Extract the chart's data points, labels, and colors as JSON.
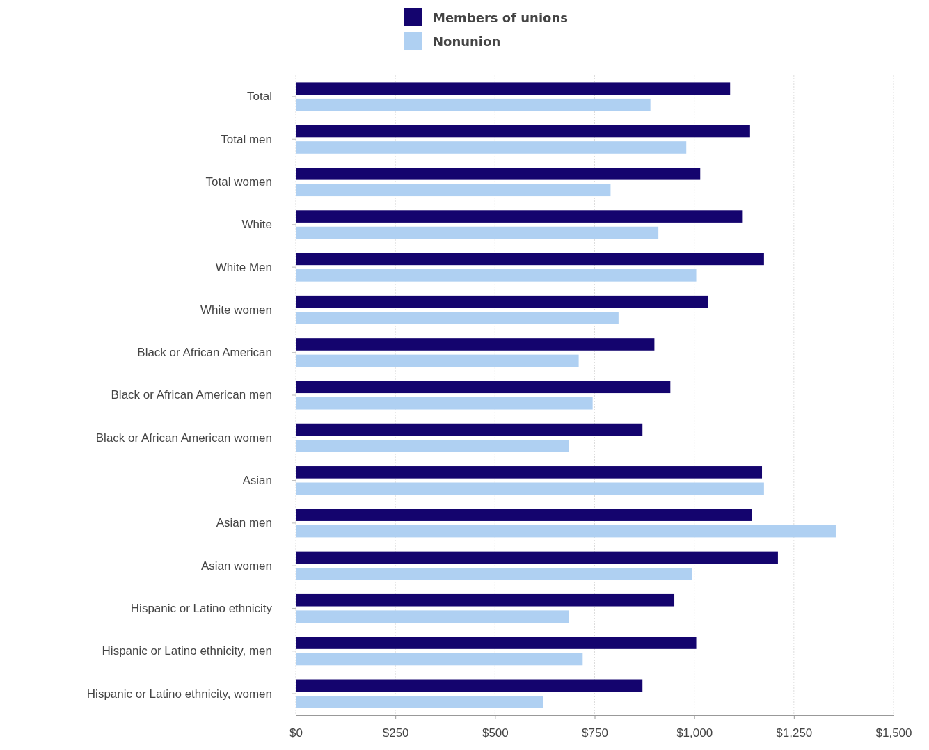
{
  "chart_data": {
    "type": "bar",
    "orientation": "horizontal",
    "categories": [
      "Total",
      "Total men",
      "Total women",
      "White",
      "White Men",
      "White women",
      "Black or African American",
      "Black or African American men",
      "Black or African American women",
      "Asian",
      "Asian men",
      "Asian women",
      "Hispanic or Latino ethnicity",
      "Hispanic or Latino ethnicity, men",
      "Hispanic or Latino ethnicity, women"
    ],
    "series": [
      {
        "name": "Members of unions",
        "color": "#14046e",
        "values": [
          1090,
          1140,
          1015,
          1120,
          1175,
          1035,
          900,
          940,
          870,
          1170,
          1145,
          1210,
          950,
          1005,
          870
        ]
      },
      {
        "name": "Nonunion",
        "color": "#afd0f2",
        "values": [
          890,
          980,
          790,
          910,
          1005,
          810,
          710,
          745,
          685,
          1175,
          1355,
          995,
          685,
          720,
          620
        ]
      }
    ],
    "xlim": [
      0,
      1500
    ],
    "xticks": [
      {
        "value": 0,
        "label": "$0"
      },
      {
        "value": 250,
        "label": "$250"
      },
      {
        "value": 500,
        "label": "$500"
      },
      {
        "value": 750,
        "label": "$750"
      },
      {
        "value": 1000,
        "label": "$1,000"
      },
      {
        "value": 1250,
        "label": "$1,250"
      },
      {
        "value": 1500,
        "label": "$1,500"
      }
    ],
    "grid": "x",
    "legend": "top"
  }
}
